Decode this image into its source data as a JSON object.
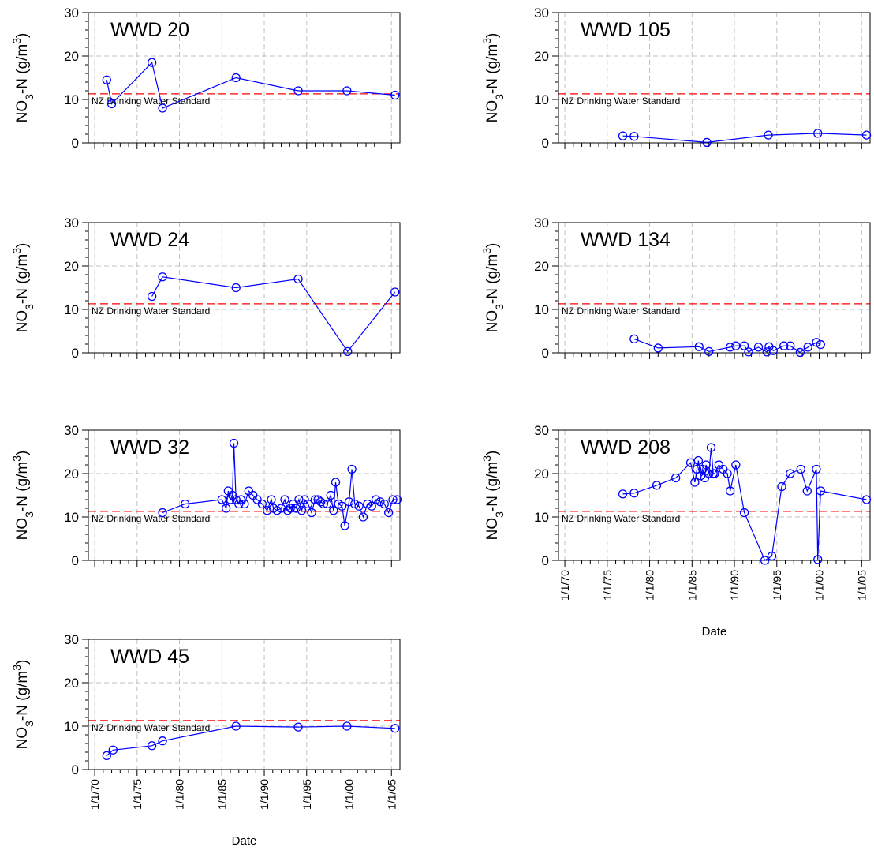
{
  "colors": {
    "series": "#0000ff",
    "standard": "#ff0000",
    "grid": "#c0c0c0",
    "axis": "#000000"
  },
  "shared": {
    "ylabel_main": "NO",
    "ylabel_sub": "3",
    "ylabel_mid": "-N (g/m",
    "ylabel_sup": "3",
    "ylabel_end": ")",
    "xlabel": "Date",
    "standard_label": "NZ Drinking Water Standard",
    "standard_value": 11.3,
    "x_ticks": [
      "1/1/70",
      "1/1/75",
      "1/1/80",
      "1/1/85",
      "1/1/90",
      "1/1/95",
      "1/1/00",
      "1/1/05"
    ],
    "y_ticks": [
      "0",
      "10",
      "20",
      "30"
    ]
  },
  "chart_data": [
    {
      "type": "line",
      "title": "WWD 20",
      "xlim": [
        "1969-04-01",
        "2005-12-31"
      ],
      "ylim": [
        0,
        30
      ],
      "grid": true,
      "x": [
        "1971-06-01",
        "1972-01-01",
        "1976-10-01",
        "1978-01-01",
        "1986-09-01",
        "1994-01-01",
        "1999-10-01",
        "2005-06-01"
      ],
      "y": [
        14.5,
        9,
        18.5,
        8,
        15,
        12,
        12,
        11
      ]
    },
    {
      "type": "line",
      "title": "WWD 105",
      "xlim": [
        "1969-04-01",
        "2005-12-31"
      ],
      "ylim": [
        0,
        30
      ],
      "grid": true,
      "x": [
        "1976-11-01",
        "1978-03-01",
        "1986-10-01",
        "1994-01-01",
        "1999-11-01",
        "2005-08-01"
      ],
      "y": [
        1.6,
        1.5,
        0.1,
        1.8,
        2.2,
        1.8
      ]
    },
    {
      "type": "line",
      "title": "WWD 24",
      "xlim": [
        "1969-04-01",
        "2005-12-31"
      ],
      "ylim": [
        0,
        30
      ],
      "grid": true,
      "x": [
        "1976-10-01",
        "1978-01-01",
        "1986-09-01",
        "1994-01-01",
        "1999-11-01",
        "2005-06-01"
      ],
      "y": [
        13,
        17.5,
        15,
        17,
        0.3,
        14
      ]
    },
    {
      "type": "line",
      "title": "WWD 134",
      "xlim": [
        "1969-04-01",
        "2005-12-31"
      ],
      "ylim": [
        0,
        30
      ],
      "grid": true,
      "x": [
        "1978-03-01",
        "1981-01-01",
        "1985-11-01",
        "1987-01-01",
        "1989-07-01",
        "1990-03-01",
        "1991-03-01",
        "1991-09-01",
        "1992-11-01",
        "1993-11-01",
        "1994-02-01",
        "1994-08-01",
        "1995-11-01",
        "1996-08-01",
        "1997-10-01",
        "1998-09-01",
        "1999-09-01",
        "2000-03-01"
      ],
      "y": [
        3.2,
        1.1,
        1.4,
        0.3,
        1.3,
        1.6,
        1.6,
        0.2,
        1.3,
        0.2,
        1.4,
        0.5,
        1.6,
        1.6,
        0.1,
        1.3,
        2.4,
        1.9
      ]
    },
    {
      "type": "line",
      "title": "WWD 32",
      "xlim": [
        "1969-04-01",
        "2005-12-31"
      ],
      "ylim": [
        0,
        30
      ],
      "grid": true,
      "x": [
        "1978-01-01",
        "1980-09-01",
        "1985-01-01",
        "1985-07-01",
        "1985-10-01",
        "1986-01-01",
        "1986-04-01",
        "1986-06-01",
        "1986-09-01",
        "1987-01-01",
        "1987-04-01",
        "1987-09-01",
        "1988-03-01",
        "1988-09-01",
        "1989-03-01",
        "1989-10-01",
        "1990-05-01",
        "1990-11-01",
        "1991-02-01",
        "1991-07-01",
        "1992-01-01",
        "1992-06-01",
        "1992-10-01",
        "1993-02-01",
        "1993-06-01",
        "1993-10-01",
        "1994-02-01",
        "1994-06-01",
        "1994-10-01",
        "1995-03-01",
        "1995-08-01",
        "1996-01-01",
        "1996-05-01",
        "1996-09-01",
        "1997-01-01",
        "1997-06-01",
        "1997-11-01",
        "1998-03-01",
        "1998-06-01",
        "1998-10-01",
        "1999-03-01",
        "1999-07-01",
        "2000-01-01",
        "2000-05-01",
        "2000-09-01",
        "2001-03-01",
        "2001-09-01",
        "2002-03-01",
        "2002-09-01",
        "2003-03-01",
        "2003-09-01",
        "2004-03-01",
        "2004-09-01",
        "2005-03-01",
        "2005-09-01"
      ],
      "y": [
        11,
        13,
        14,
        12,
        16,
        14,
        15,
        27,
        14,
        13,
        14,
        13,
        16,
        15,
        14,
        13,
        11.5,
        14,
        12,
        11.5,
        12,
        14,
        11.5,
        12,
        13,
        12,
        14,
        11.5,
        14,
        13,
        11,
        14,
        14,
        13.5,
        13,
        13,
        15,
        11.5,
        18,
        13,
        12.5,
        8,
        13.5,
        21,
        13,
        12.5,
        10,
        13,
        12.5,
        14,
        13.5,
        13,
        11,
        14,
        14
      ]
    },
    {
      "type": "line",
      "title": "WWD 208",
      "xlim": [
        "1969-04-01",
        "2005-12-31"
      ],
      "ylim": [
        0,
        30
      ],
      "grid": true,
      "x": [
        "1976-11-01",
        "1978-03-01",
        "1980-11-01",
        "1983-02-01",
        "1984-11-01",
        "1985-05-01",
        "1985-08-01",
        "1985-10-01",
        "1986-01-01",
        "1986-04-01",
        "1986-07-01",
        "1986-09-01",
        "1987-01-01",
        "1987-04-01",
        "1987-07-01",
        "1987-09-01",
        "1988-03-01",
        "1988-09-01",
        "1989-03-01",
        "1989-07-01",
        "1990-03-01",
        "1991-03-01",
        "1993-08-01",
        "1994-06-01",
        "1995-08-01",
        "1996-08-01",
        "1997-11-01",
        "1998-08-01",
        "1999-09-01",
        "1999-11-01",
        "2000-03-01",
        "2005-08-01"
      ],
      "y": [
        15.3,
        15.5,
        17.3,
        19,
        22.5,
        18,
        21,
        23,
        19.5,
        21,
        19,
        22,
        20,
        26,
        20,
        20,
        22,
        21,
        20,
        16,
        22,
        11,
        0,
        1,
        17,
        20,
        21,
        16,
        21,
        0.2,
        16,
        14
      ]
    },
    {
      "type": "line",
      "title": "WWD 45",
      "xlim": [
        "1969-04-01",
        "2005-12-31"
      ],
      "ylim": [
        0,
        30
      ],
      "grid": true,
      "x": [
        "1971-06-01",
        "1972-03-01",
        "1976-10-01",
        "1978-01-01",
        "1986-09-01",
        "1994-01-01",
        "1999-10-01",
        "2005-06-01"
      ],
      "y": [
        3.2,
        4.5,
        5.5,
        6.6,
        10,
        9.8,
        10,
        9.5
      ]
    }
  ]
}
